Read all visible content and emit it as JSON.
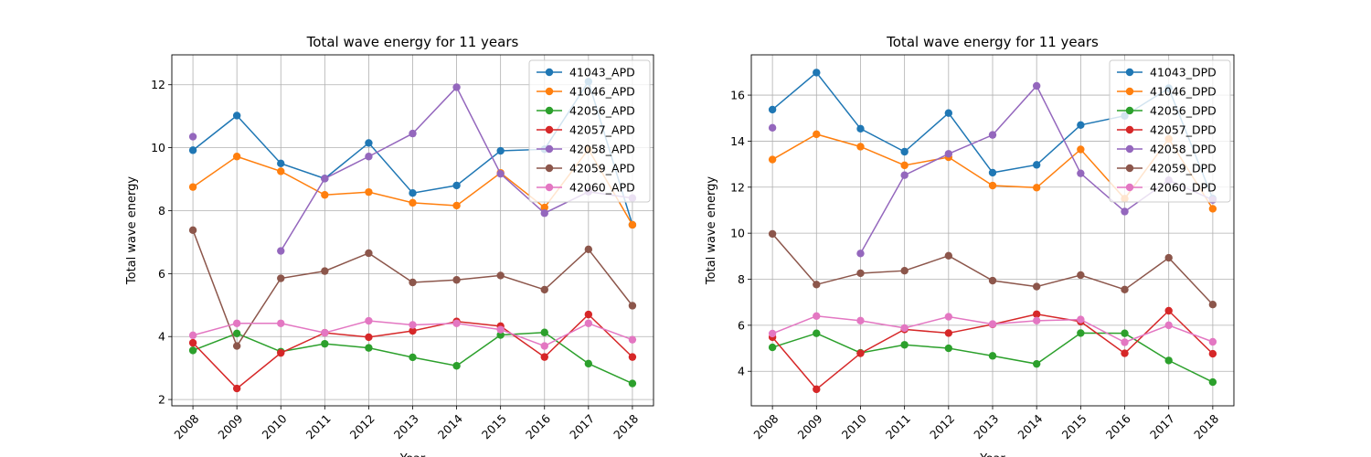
{
  "chart_data": [
    {
      "type": "line",
      "title": "Total wave energy for 11 years",
      "xlabel": "Year",
      "ylabel": "Total wave energy",
      "x": [
        2008,
        2009,
        2010,
        2011,
        2012,
        2013,
        2014,
        2015,
        2016,
        2017,
        2018
      ],
      "xticks": [
        "2008",
        "2009",
        "2010",
        "2011",
        "2012",
        "2013",
        "2014",
        "2015",
        "2016",
        "2017",
        "2018"
      ],
      "yticks": [
        2,
        4,
        6,
        8,
        10,
        12
      ],
      "ytick_labels": [
        "2",
        "4",
        "6",
        "8",
        "10",
        "12"
      ],
      "ylim": [
        1.8,
        12.95
      ],
      "grid": true,
      "legend": "top-right",
      "series": [
        {
          "name": "41043_APD",
          "color": "#1f77b4",
          "values": [
            9.92,
            11.02,
            9.5,
            9.02,
            10.15,
            8.56,
            8.8,
            9.9,
            9.95,
            12.1,
            7.55
          ]
        },
        {
          "name": "41046_APD",
          "color": "#ff7f0e",
          "values": [
            8.75,
            9.72,
            9.25,
            8.5,
            8.59,
            8.25,
            8.16,
            9.2,
            8.1,
            9.95,
            7.55
          ]
        },
        {
          "name": "42056_APD",
          "color": "#2ca02c",
          "values": [
            3.56,
            4.1,
            3.52,
            3.77,
            3.64,
            3.34,
            3.07,
            4.05,
            4.13,
            3.14,
            2.51
          ]
        },
        {
          "name": "42057_APD",
          "color": "#d62728",
          "values": [
            3.8,
            2.35,
            3.48,
            4.12,
            3.98,
            4.18,
            4.48,
            4.33,
            3.35,
            4.7,
            3.35
          ]
        },
        {
          "name": "42058_APD",
          "color": "#9467bd",
          "values": [
            10.35,
            null,
            6.72,
            9.02,
            9.72,
            10.45,
            11.92,
            9.17,
            7.92,
            8.6,
            8.4
          ]
        },
        {
          "name": "42059_APD",
          "color": "#8c564b",
          "values": [
            7.38,
            3.7,
            5.85,
            6.08,
            6.65,
            5.72,
            5.8,
            5.94,
            5.49,
            6.77,
            4.98
          ]
        },
        {
          "name": "42060_APD",
          "color": "#e377c2",
          "values": [
            4.04,
            4.42,
            4.42,
            4.12,
            4.5,
            4.37,
            4.42,
            4.22,
            3.7,
            4.42,
            3.9
          ]
        }
      ]
    },
    {
      "type": "line",
      "title": "Total wave energy for 11 years",
      "xlabel": "Year",
      "ylabel": "Total wave energy",
      "x": [
        2008,
        2009,
        2010,
        2011,
        2012,
        2013,
        2014,
        2015,
        2016,
        2017,
        2018
      ],
      "xticks": [
        "2008",
        "2009",
        "2010",
        "2011",
        "2012",
        "2013",
        "2014",
        "2015",
        "2016",
        "2017",
        "2018"
      ],
      "yticks": [
        4,
        6,
        8,
        10,
        12,
        14,
        16
      ],
      "ytick_labels": [
        "4",
        "6",
        "8",
        "10",
        "12",
        "14",
        "16"
      ],
      "ylim": [
        2.5,
        17.75
      ],
      "grid": true,
      "legend": "top-right",
      "series": [
        {
          "name": "41043_DPD",
          "color": "#1f77b4",
          "values": [
            15.37,
            16.98,
            14.54,
            13.54,
            15.22,
            12.63,
            12.97,
            14.7,
            15.1,
            16.3,
            11.5
          ]
        },
        {
          "name": "41046_DPD",
          "color": "#ff7f0e",
          "values": [
            13.2,
            14.3,
            13.76,
            12.95,
            13.3,
            12.07,
            11.98,
            13.64,
            11.5,
            14.1,
            11.06
          ]
        },
        {
          "name": "42056_DPD",
          "color": "#2ca02c",
          "values": [
            5.04,
            5.65,
            4.8,
            5.15,
            5.0,
            4.67,
            4.32,
            5.66,
            5.65,
            4.47,
            3.53
          ]
        },
        {
          "name": "42057_DPD",
          "color": "#d62728",
          "values": [
            5.48,
            3.22,
            4.78,
            5.82,
            5.66,
            6.04,
            6.48,
            6.16,
            4.78,
            6.63,
            4.76
          ]
        },
        {
          "name": "42058_DPD",
          "color": "#9467bd",
          "values": [
            14.58,
            null,
            9.12,
            12.52,
            13.45,
            14.27,
            16.4,
            12.6,
            10.94,
            12.3,
            11.45
          ]
        },
        {
          "name": "42059_DPD",
          "color": "#8c564b",
          "values": [
            9.97,
            7.77,
            8.26,
            8.37,
            9.02,
            7.94,
            7.68,
            8.18,
            7.55,
            8.93,
            6.9
          ]
        },
        {
          "name": "42060_DPD",
          "color": "#e377c2",
          "values": [
            5.64,
            6.4,
            6.2,
            5.88,
            6.37,
            6.05,
            6.2,
            6.25,
            5.26,
            6.0,
            5.28
          ]
        }
      ]
    }
  ]
}
